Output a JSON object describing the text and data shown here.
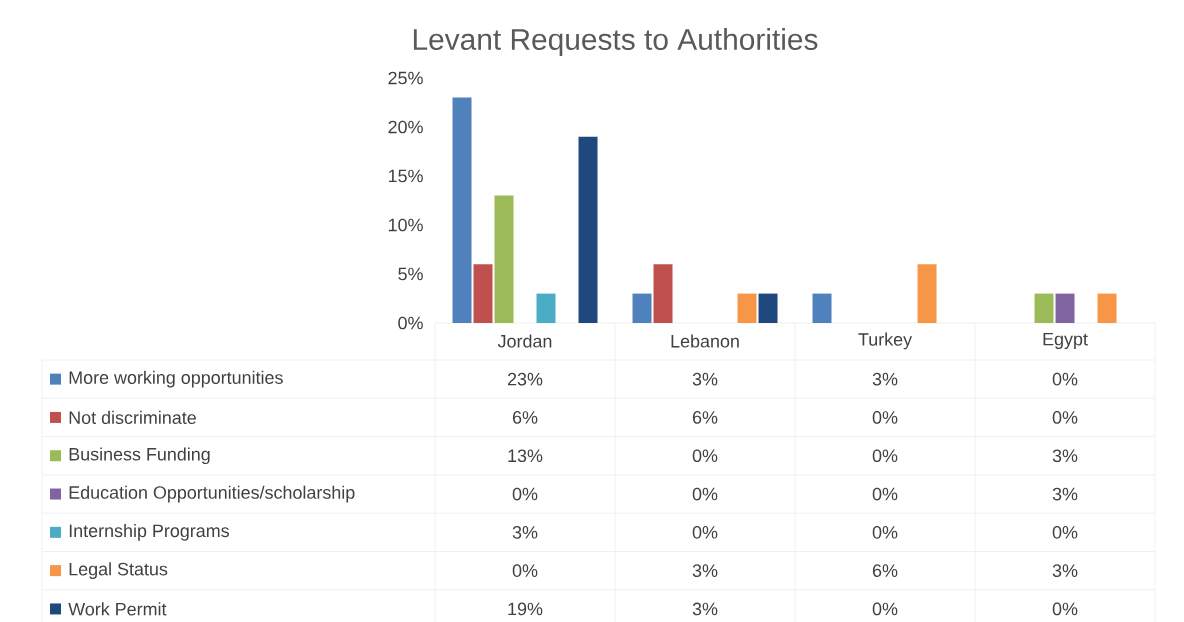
{
  "chart_data": {
    "type": "bar",
    "title": "Levant Requests to Authorities",
    "categories": [
      "Jordan",
      "Lebanon",
      "Turkey",
      "Egypt"
    ],
    "ylim": [
      0,
      25
    ],
    "yticks": [
      {
        "value": 0,
        "label": "0%"
      },
      {
        "value": 5,
        "label": "5%"
      },
      {
        "value": 10,
        "label": "10%"
      },
      {
        "value": 15,
        "label": "15%"
      },
      {
        "value": 20,
        "label": "20%"
      },
      {
        "value": 25,
        "label": "25%"
      }
    ],
    "legend": "bottom",
    "series": [
      {
        "name": "More working opportunities",
        "color": "#4f81bd",
        "values": [
          23,
          3,
          3,
          0
        ],
        "value_labels": [
          "23%",
          "3%",
          "3%",
          "0%"
        ]
      },
      {
        "name": "Not discriminate",
        "color": "#c0504d",
        "values": [
          6,
          6,
          0,
          0
        ],
        "value_labels": [
          "6%",
          "6%",
          "0%",
          "0%"
        ]
      },
      {
        "name": "Business Funding",
        "color": "#9bbb59",
        "values": [
          13,
          0,
          0,
          3
        ],
        "value_labels": [
          "13%",
          "0%",
          "0%",
          "3%"
        ]
      },
      {
        "name": "Education Opportunities/scholarship",
        "color": "#8064a2",
        "values": [
          0,
          0,
          0,
          3
        ],
        "value_labels": [
          "0%",
          "0%",
          "0%",
          "3%"
        ]
      },
      {
        "name": "Internship Programs",
        "color": "#4bacc6",
        "values": [
          3,
          0,
          0,
          0
        ],
        "value_labels": [
          "3%",
          "0%",
          "0%",
          "0%"
        ]
      },
      {
        "name": "Legal Status",
        "color": "#f79646",
        "values": [
          0,
          3,
          6,
          3
        ],
        "value_labels": [
          "0%",
          "3%",
          "6%",
          "3%"
        ]
      },
      {
        "name": "Work Permit",
        "color": "#1f497d",
        "values": [
          19,
          3,
          0,
          0
        ],
        "value_labels": [
          "19%",
          "3%",
          "0%",
          "0%"
        ]
      }
    ]
  }
}
